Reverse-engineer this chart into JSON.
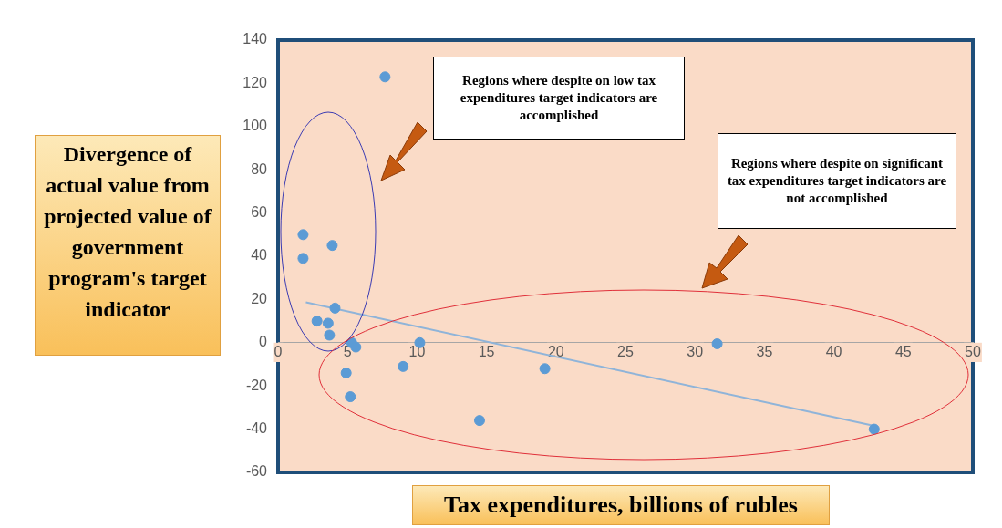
{
  "chart_data": {
    "type": "scatter",
    "xlabel": "Tax expenditures, billions of rubles",
    "ylabel": "Divergence of actual value from projected value of government program's target indicator",
    "annotations": [
      "Regions where despite on low tax expenditures target indicators are accomplished",
      "Regions where despite on significant tax expenditures target indicators are not accomplished"
    ],
    "xlim": [
      0,
      50
    ],
    "xticks": [
      0,
      5,
      10,
      15,
      20,
      25,
      30,
      35,
      40,
      45,
      50
    ],
    "ylim": [
      -60,
      140
    ],
    "yticks": [
      -60,
      -40,
      -20,
      0,
      20,
      40,
      60,
      80,
      100,
      120,
      140
    ],
    "grid": false,
    "legend": false,
    "marker": "circle",
    "series": [
      {
        "color": "#5b9bd5",
        "x": [
          7.7,
          1.8,
          1.8,
          3.9,
          4.1,
          2.8,
          3.6,
          3.7,
          5.3,
          5.6,
          4.9,
          5.2,
          9.0,
          10.2,
          14.5,
          19.2,
          31.6,
          42.9
        ],
        "values": [
          123,
          50,
          39,
          45,
          16,
          10,
          9,
          3.5,
          0,
          -2,
          -14,
          -25,
          -11,
          0,
          -36,
          -12,
          -0.5,
          -40
        ]
      },
      {
        "type": "line",
        "marker": "none",
        "color": "#8fb4d9",
        "x": [
          2,
          42.9
        ],
        "values": [
          18.7,
          -38.5
        ]
      }
    ]
  }
}
